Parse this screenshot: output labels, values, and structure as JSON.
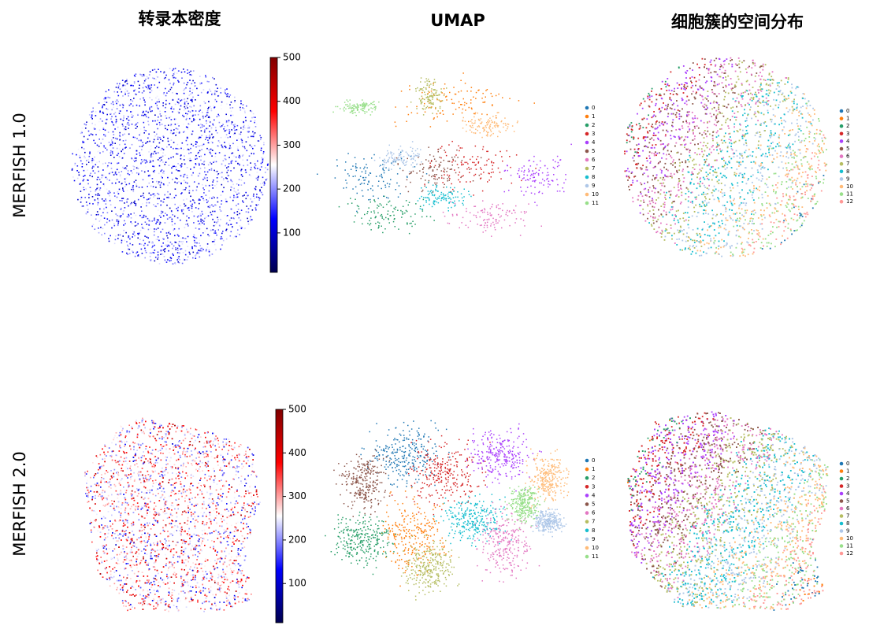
{
  "titles": [
    "转录本密度",
    "UMAP",
    "细胞簇的空间分布"
  ],
  "rows": [
    {
      "label": "MERFISH 1.0",
      "colorbar": {
        "lim": [
          10,
          500
        ],
        "ticks": [
          100,
          200,
          300,
          400,
          500
        ],
        "colormap": "seismic"
      },
      "umap_legend": [
        {
          "name": "0",
          "color": "#1f77b4"
        },
        {
          "name": "1",
          "color": "#ff7f0e"
        },
        {
          "name": "2",
          "color": "#279e68"
        },
        {
          "name": "3",
          "color": "#d62728"
        },
        {
          "name": "4",
          "color": "#aa40fc"
        },
        {
          "name": "5",
          "color": "#8c564b"
        },
        {
          "name": "6",
          "color": "#e377c2"
        },
        {
          "name": "7",
          "color": "#b5bd61"
        },
        {
          "name": "8",
          "color": "#17becf"
        },
        {
          "name": "9",
          "color": "#aec7e8"
        },
        {
          "name": "10",
          "color": "#ffbb78"
        },
        {
          "name": "11",
          "color": "#98df8a"
        }
      ],
      "spatial_legend": [
        {
          "name": "0",
          "color": "#1f77b4"
        },
        {
          "name": "1",
          "color": "#ff7f0e"
        },
        {
          "name": "2",
          "color": "#279e68"
        },
        {
          "name": "3",
          "color": "#d62728"
        },
        {
          "name": "4",
          "color": "#aa40fc"
        },
        {
          "name": "5",
          "color": "#8c564b"
        },
        {
          "name": "6",
          "color": "#e377c2"
        },
        {
          "name": "7",
          "color": "#b5bd61"
        },
        {
          "name": "8",
          "color": "#17becf"
        },
        {
          "name": "9",
          "color": "#aec7e8"
        },
        {
          "name": "10",
          "color": "#ffbb78"
        },
        {
          "name": "11",
          "color": "#98df8a"
        },
        {
          "name": "12",
          "color": "#ff9896"
        }
      ]
    },
    {
      "label": "MERFISH 2.0",
      "colorbar": {
        "lim": [
          10,
          500
        ],
        "ticks": [
          100,
          200,
          300,
          400,
          500
        ],
        "colormap": "seismic"
      },
      "umap_legend": [
        {
          "name": "0",
          "color": "#1f77b4"
        },
        {
          "name": "1",
          "color": "#ff7f0e"
        },
        {
          "name": "2",
          "color": "#279e68"
        },
        {
          "name": "3",
          "color": "#d62728"
        },
        {
          "name": "4",
          "color": "#aa40fc"
        },
        {
          "name": "5",
          "color": "#8c564b"
        },
        {
          "name": "6",
          "color": "#e377c2"
        },
        {
          "name": "7",
          "color": "#b5bd61"
        },
        {
          "name": "8",
          "color": "#17becf"
        },
        {
          "name": "9",
          "color": "#aec7e8"
        },
        {
          "name": "10",
          "color": "#ffbb78"
        },
        {
          "name": "11",
          "color": "#98df8a"
        }
      ],
      "spatial_legend": [
        {
          "name": "0",
          "color": "#1f77b4"
        },
        {
          "name": "1",
          "color": "#ff7f0e"
        },
        {
          "name": "2",
          "color": "#279e68"
        },
        {
          "name": "3",
          "color": "#d62728"
        },
        {
          "name": "4",
          "color": "#aa40fc"
        },
        {
          "name": "5",
          "color": "#8c564b"
        },
        {
          "name": "6",
          "color": "#e377c2"
        },
        {
          "name": "7",
          "color": "#b5bd61"
        },
        {
          "name": "8",
          "color": "#17becf"
        },
        {
          "name": "9",
          "color": "#aec7e8"
        },
        {
          "name": "10",
          "color": "#ffbb78"
        },
        {
          "name": "11",
          "color": "#98df8a"
        },
        {
          "name": "12",
          "color": "#ff9896"
        }
      ]
    }
  ]
}
